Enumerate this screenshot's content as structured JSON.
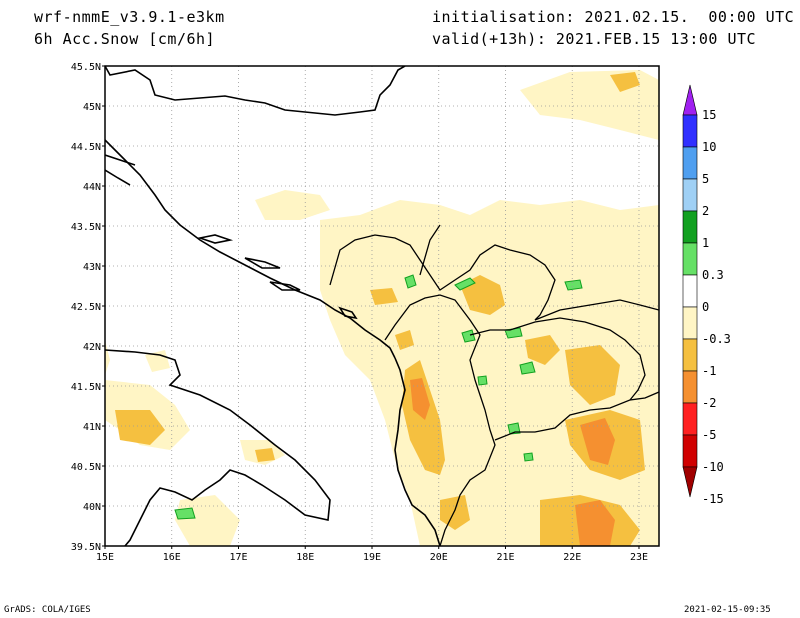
{
  "header": {
    "model": "wrf-nmmE_v3.9.1-e3km",
    "field": "6h Acc.Snow [cm/6h]",
    "init": "initialisation: 2021.02.15.  00:00 UTC",
    "valid": "valid(+13h): 2021.FEB.15 13:00 UTC"
  },
  "footer": {
    "left": "GrADS: COLA/IGES",
    "right": "2021-02-15-09:35"
  },
  "map": {
    "lat_labels": [
      "45.5N",
      "45N",
      "44.5N",
      "44N",
      "43.5N",
      "43N",
      "42.5N",
      "42N",
      "41.5N",
      "41N",
      "40.5N",
      "40N",
      "39.5N"
    ],
    "lon_labels": [
      "15E",
      "16E",
      "17E",
      "18E",
      "19E",
      "20E",
      "21E",
      "22E",
      "23E"
    ],
    "extent": {
      "lon": [
        15,
        23.3
      ],
      "lat": [
        39.5,
        45.5
      ]
    },
    "grid": true
  },
  "colorbar": {
    "labels": [
      "15",
      "10",
      "5",
      "2",
      "1",
      "0.3",
      "0",
      "-0.3",
      "-1",
      "-2",
      "-5",
      "-10",
      "-15"
    ],
    "colors": [
      "#a020f0",
      "#3030ff",
      "#4f9ff0",
      "#9fd0f5",
      "#12a020",
      "#66e066",
      "#ffffff",
      "#fff5c5",
      "#f5c040",
      "#f59030",
      "#ff2020",
      "#d00000",
      "#a00000"
    ]
  }
}
